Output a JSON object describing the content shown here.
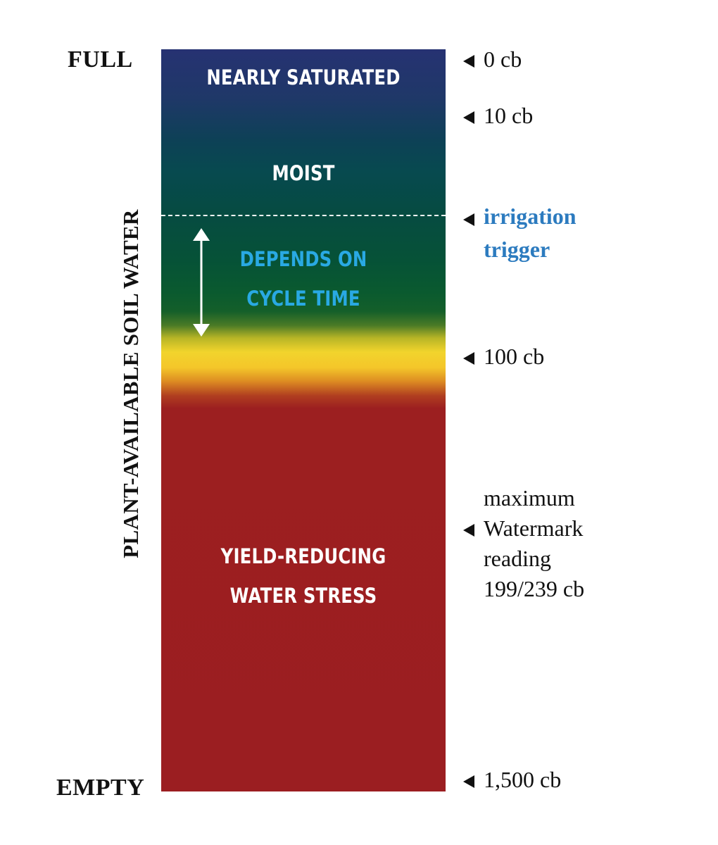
{
  "labels": {
    "full": "FULL",
    "empty": "EMPTY",
    "y_axis": "PLANT-AVAILABLE SOIL WATER"
  },
  "zones": {
    "nearly_saturated": "NEARLY SATURATED",
    "moist": "MOIST",
    "depends_line1": "DEPENDS ON",
    "depends_line2": "CYCLE TIME",
    "stress_line1": "YIELD-REDUCING",
    "stress_line2": "WATER STRESS"
  },
  "markers": {
    "zero": "0 cb",
    "ten": "10 cb",
    "trigger_line1": "irrigation",
    "trigger_line2": "trigger",
    "hundred": "100 cb",
    "max_line1": "maximum",
    "max_line2": "Watermark",
    "max_line3": "reading",
    "max_line4": "199/239 cb",
    "fifteen_hundred": "1,500 cb"
  },
  "colors": {
    "saturated": "#263272",
    "moist": "#064b42",
    "depends": "#065237",
    "transition": "#f2d42c",
    "stress": "#9b1e21",
    "trigger_text": "#2c7bbf",
    "depends_text": "#29a9e3"
  },
  "icons": {
    "pointer": "left-triangle",
    "range": "double-headed-vertical-arrow"
  }
}
